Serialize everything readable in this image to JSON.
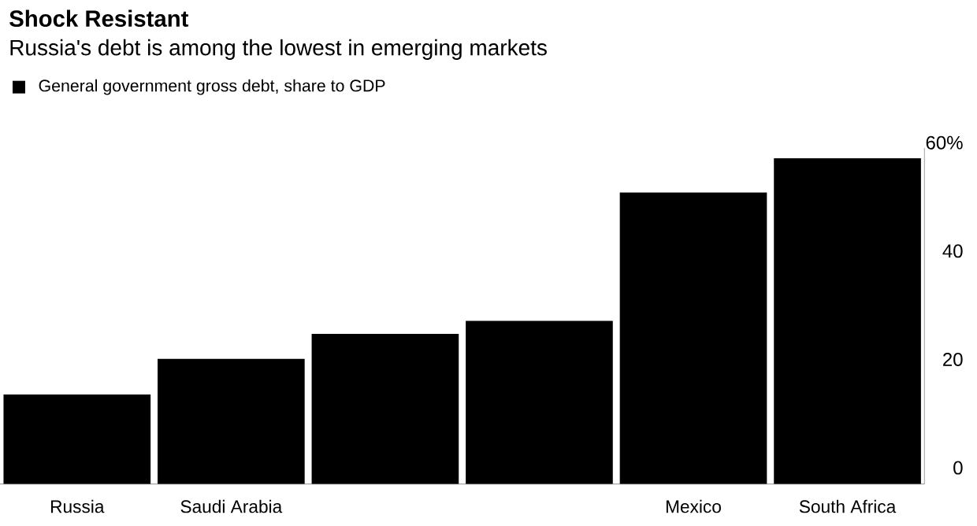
{
  "chart_data": {
    "type": "bar",
    "title": "Shock Resistant",
    "subtitle": "Russia's debt is among the lowest in emerging markets",
    "categories": [
      "Russia",
      "Saudi Arabia",
      null,
      null,
      "Mexico",
      "South Africa"
    ],
    "series": [
      {
        "name": "General government gross debt, share to GDP",
        "color": "#000000",
        "values": [
          16.5,
          23.1,
          27.7,
          30.1,
          53.8,
          60.1
        ]
      }
    ],
    "ylim": [
      0,
      62
    ],
    "yticks": [
      0,
      20,
      40,
      {
        "value": 60,
        "label": "60%"
      }
    ],
    "grid": false,
    "legend": "top left"
  }
}
